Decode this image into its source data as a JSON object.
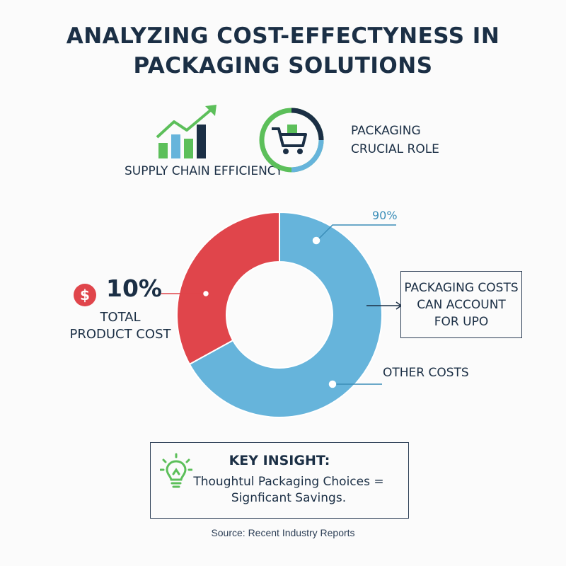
{
  "header": {
    "title_line1": "ANALYZING COST-EFFECTYNESS IN",
    "title_line2": "PACKAGING SOLUTIONS"
  },
  "top_icons": {
    "efficiency_icon": "bar-growth-arrow-icon",
    "efficiency_caption": "SUPPLY CHAIN EFFICIENCY",
    "cart_icon": "shopping-cart-ring-icon",
    "packaging_caption_line1": "PACKAGING",
    "packaging_caption_line2": "CRUCIAL ROLE"
  },
  "chart_data": {
    "type": "pie",
    "style": "donut",
    "slices": [
      {
        "label": "TOTAL PRODUCT COST",
        "value": 10,
        "color": "#e0454b"
      },
      {
        "label": "OTHER COSTS",
        "value": 90,
        "color": "#66b4db"
      }
    ],
    "annotations": {
      "red_pct": "10%",
      "red_label_line1": "TOTAL",
      "red_label_line2": "PRODUCT COST",
      "blue_pct": "90%",
      "blue_label": "OTHER COSTS",
      "callout_line1": "PACKAGING COSTS",
      "callout_line2": "CAN ACCOUNT",
      "callout_line3": "FOR UPO"
    }
  },
  "dollar_icon": {
    "icon": "dollar-circle-icon",
    "glyph": "$"
  },
  "insight": {
    "icon": "lightbulb-icon",
    "title": "KEY INSIGHT:",
    "line1": "Thoughtul Packaging Choices =",
    "line2": "Signficant Savings."
  },
  "footer": {
    "source": "Source: Recent Industry Reports"
  },
  "colors": {
    "red": "#e0454b",
    "blue": "#66b4db",
    "green": "#5cbf5a",
    "navy": "#1b2f45"
  }
}
